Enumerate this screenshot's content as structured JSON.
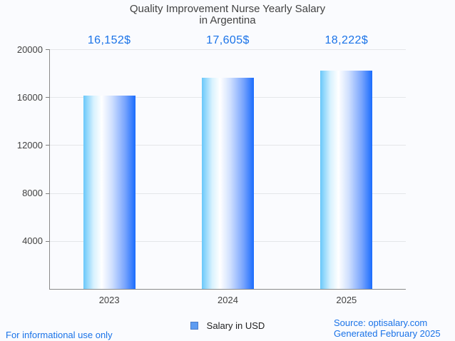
{
  "title": {
    "line1": "Quality Improvement Nurse Yearly Salary",
    "line2": "in Argentina"
  },
  "legend": {
    "label": "Salary in USD",
    "swatch_fill": "#5e9cf1",
    "swatch_border": "#4a7dc9"
  },
  "footer": {
    "disclaimer": "For informational use only",
    "source": "Source: optisalary.com",
    "generated": "Generated February 2025"
  },
  "colors": {
    "background": "#fafbfe",
    "title_text": "#424242",
    "axis_label_text": "#424242",
    "value_label_text": "#1a73e8",
    "footer_text": "#1a73e8",
    "gridline": "#e4e6e9",
    "axis_line": "#8a8a8a",
    "bar_gradient_left": "#69c8fa",
    "bar_gradient_mid": "#ffffff",
    "bar_gradient_right": "#1a6cfd"
  },
  "chart_data": {
    "type": "bar",
    "title": "Quality Improvement Nurse Yearly Salary in Argentina",
    "categories": [
      "2023",
      "2024",
      "2025"
    ],
    "series": [
      {
        "name": "Salary in USD",
        "values": [
          16152,
          17605,
          18222
        ]
      }
    ],
    "value_labels": [
      "16,152$",
      "17,605$",
      "18,222$"
    ],
    "xlabel": "",
    "ylabel": "",
    "ylim": [
      0,
      20000
    ],
    "yticks": [
      4000,
      8000,
      12000,
      16000,
      20000
    ],
    "grid": "horizontal",
    "legend_position": "bottom"
  }
}
